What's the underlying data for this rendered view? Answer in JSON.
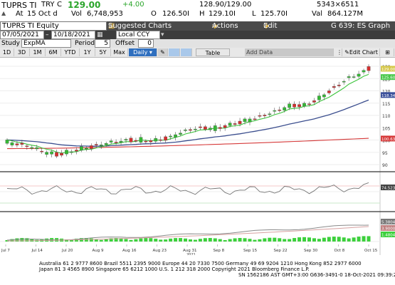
{
  "quote": {
    "ticker": "TUPRS TI",
    "currency": "TRY",
    "last_flag": "C",
    "last_price": "129.00",
    "change": "+4.00",
    "bid_ask": "128.90/129.00",
    "bid_ask_size": "5343×6511",
    "time_prefix": "At",
    "time": "15 Oct d",
    "volume_label": "Vol",
    "volume": "6,748,953",
    "open_label": "O",
    "open": "126.50I",
    "high_label": "H",
    "high": "129.10I",
    "low_label": "L",
    "low": "125.70I",
    "value_label": "Val",
    "value": "864.127M"
  },
  "title_bar": {
    "security": "TUPRS TI Equity",
    "suggested_charts": "Suggested Charts",
    "actions": "Actions",
    "edit": "Edit",
    "graph_id": "G 639: ES Graph"
  },
  "controls": {
    "start_date": "07/05/2021",
    "end_date": "10/18/2021",
    "currency": "Local CCY",
    "study_label": "Study",
    "study_value": "ExpMA",
    "period_label": "Period",
    "period_value": "5",
    "offset_label": "Offset",
    "offset_value": "0"
  },
  "toolbar": {
    "ranges": [
      "1D",
      "3D",
      "1M",
      "6M",
      "YTD",
      "1Y",
      "5Y",
      "Max"
    ],
    "frequency": "Daily",
    "table_label": "Table",
    "add_data_placeholder": "Add Data",
    "edit_chart": "Edit Chart"
  },
  "chart": {
    "price_labels": [
      {
        "text": "130",
        "v": 130
      },
      {
        "text": "125",
        "v": 125
      },
      {
        "text": "120",
        "v": 120
      },
      {
        "text": "115",
        "v": 115
      },
      {
        "text": "110",
        "v": 110
      },
      {
        "text": "105",
        "v": 105
      },
      {
        "text": "100",
        "v": 100
      },
      {
        "text": "95",
        "v": 95
      },
      {
        "text": "90",
        "v": 90
      }
    ],
    "callouts": [
      {
        "text": "129.00",
        "color": "#d6c84a",
        "v": 129
      },
      {
        "text": "125.60",
        "color": "#48c84a",
        "v": 125.6
      },
      {
        "text": "118.34",
        "color": "#3a4f9a",
        "v": 118.3
      },
      {
        "text": "100.63",
        "color": "#d63a3a",
        "v": 100.6
      }
    ],
    "indicator_callout": "74.5233",
    "macd_callouts": [
      "5.3804",
      "3.9000",
      "1.4804"
    ],
    "x_labels": [
      "Jul 7",
      "Jul 14",
      "Jul 20",
      "Aug 9",
      "Aug 16",
      "Aug 23",
      "Aug 31",
      "Sep 8",
      "Sep 15",
      "Sep 22",
      "Sep 30",
      "Oct 8",
      "Oct 15"
    ],
    "year_label": "2021",
    "colors": {
      "up": "#35b835",
      "down": "#d43030",
      "ema5": "#3cc43c",
      "ema_mid": "#3b4e8e",
      "ema_long": "#d63a3a"
    }
  },
  "footer": {
    "line1": "Australia 61 2 9777 8600 Brazil 5511 2395 9000 Europe 44 20 7330 7500 Germany 49 69 9204 1210 Hong Kong 852 2977 6000",
    "line2": "Japan 81 3 4565 8900           Singapore 65 6212 1000    U.S. 1 212 318 2000         Copyright 2021 Bloomberg Finance L.P.",
    "line3": "SN 1562186 AST  GMT+3:00 G636-3491-0 18-Oct-2021 09:39:23"
  }
}
